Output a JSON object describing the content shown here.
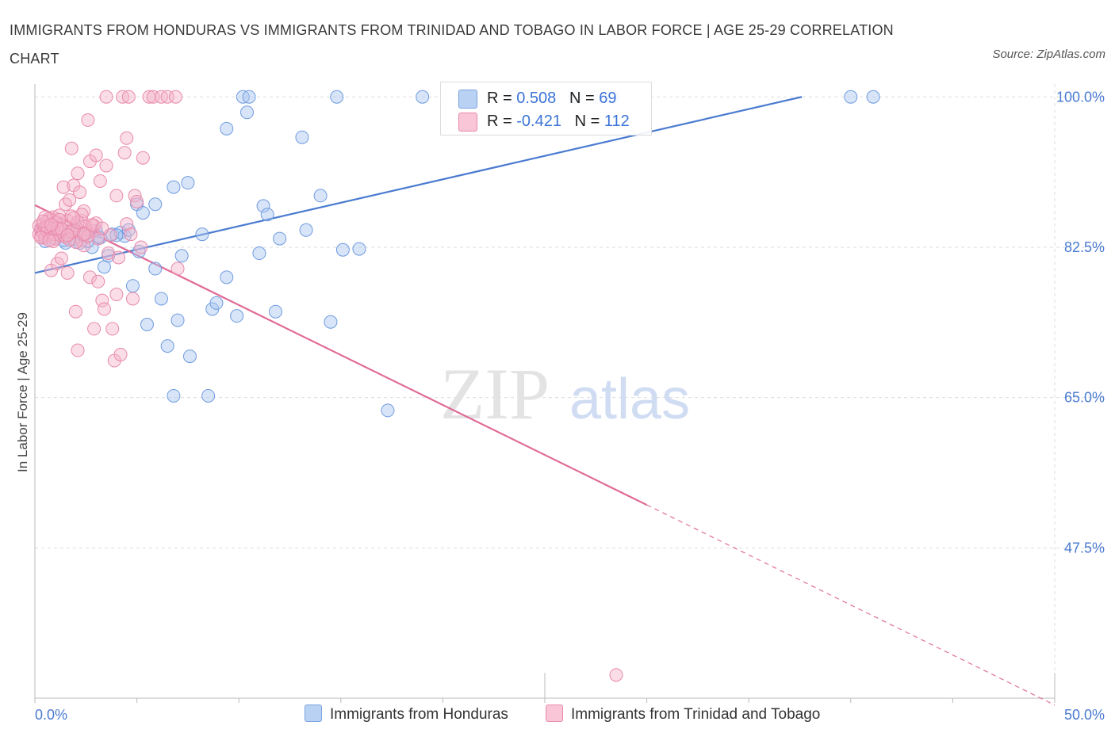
{
  "title": "IMMIGRANTS FROM HONDURAS VS IMMIGRANTS FROM TRINIDAD AND TOBAGO IN LABOR FORCE | AGE 25-29 CORRELATION CHART",
  "source": "Source: ZipAtlas.com",
  "watermark": {
    "zip": "ZIP",
    "atlas": "atlas"
  },
  "colors": {
    "blue": "#4a7bd0",
    "blue_fill": "#a8c6f0",
    "pink": "#e06a96",
    "pink_fill": "#f5b3c9",
    "grid": "#dddddd"
  },
  "legend": {
    "rows": [
      {
        "r_label": "R =",
        "r_value": "0.508",
        "n_label": "N =",
        "n_value": "69"
      },
      {
        "r_label": "R =",
        "r_value": "-0.421",
        "n_label": "N =",
        "n_value": "112"
      }
    ]
  },
  "bottom_legend": [
    "Immigrants from Honduras",
    "Immigrants from Trinidad and Tobago"
  ],
  "chart_data": {
    "type": "scatter",
    "title": "IMMIGRANTS FROM HONDURAS VS IMMIGRANTS FROM TRINIDAD AND TOBAGO IN LABOR FORCE | AGE 25-29 CORRELATION CHART",
    "xlabel": "",
    "ylabel": "In Labor Force | Age 25-29",
    "xlim": [
      0,
      50
    ],
    "ylim": [
      30,
      101.5
    ],
    "x_tick_labels": [
      "0.0%",
      "50.0%"
    ],
    "y_ticks": [
      47.5,
      65.0,
      82.5,
      100.0
    ],
    "y_tick_labels": [
      "47.5%",
      "65.0%",
      "82.5%",
      "100.0%"
    ],
    "grid": true,
    "legend_position": "top-center",
    "series": [
      {
        "name": "Immigrants from Honduras",
        "color": "#4a7bd0",
        "trend": {
          "x0": 0,
          "y0": 79.5,
          "x1": 37.6,
          "y1": 100.0
        },
        "points": [
          [
            0.3,
            84.5
          ],
          [
            0.5,
            83.2
          ],
          [
            0.8,
            84.0
          ],
          [
            1.0,
            83.5
          ],
          [
            1.2,
            84.3
          ],
          [
            1.5,
            83.0
          ],
          [
            1.7,
            84.2
          ],
          [
            1.9,
            83.4
          ],
          [
            2.2,
            83.0
          ],
          [
            2.4,
            83.8
          ],
          [
            2.8,
            82.5
          ],
          [
            3.0,
            84.4
          ],
          [
            3.2,
            83.6
          ],
          [
            3.4,
            80.2
          ],
          [
            3.6,
            81.5
          ],
          [
            3.8,
            84.0
          ],
          [
            4.2,
            84.2
          ],
          [
            4.4,
            83.8
          ],
          [
            4.6,
            84.5
          ],
          [
            4.8,
            78.0
          ],
          [
            5.0,
            87.5
          ],
          [
            5.1,
            82.0
          ],
          [
            5.3,
            86.5
          ],
          [
            5.5,
            73.5
          ],
          [
            5.9,
            87.5
          ],
          [
            5.9,
            80.0
          ],
          [
            6.2,
            76.5
          ],
          [
            6.5,
            71.0
          ],
          [
            6.8,
            89.5
          ],
          [
            6.8,
            65.2
          ],
          [
            7.0,
            74.0
          ],
          [
            7.2,
            81.5
          ],
          [
            7.5,
            90.0
          ],
          [
            7.6,
            69.8
          ],
          [
            8.2,
            84.0
          ],
          [
            8.5,
            65.2
          ],
          [
            8.7,
            75.3
          ],
          [
            8.9,
            76.0
          ],
          [
            9.4,
            96.3
          ],
          [
            9.4,
            79.0
          ],
          [
            9.9,
            74.5
          ],
          [
            10.2,
            100.0
          ],
          [
            10.4,
            98.2
          ],
          [
            10.5,
            100.0
          ],
          [
            11.0,
            81.8
          ],
          [
            11.2,
            87.3
          ],
          [
            11.4,
            86.3
          ],
          [
            11.8,
            75.0
          ],
          [
            12.0,
            83.5
          ],
          [
            13.1,
            95.3
          ],
          [
            13.3,
            84.5
          ],
          [
            14.0,
            88.5
          ],
          [
            14.5,
            73.8
          ],
          [
            14.8,
            100.0
          ],
          [
            15.1,
            82.2
          ],
          [
            15.9,
            82.3
          ],
          [
            17.3,
            63.5
          ],
          [
            19.0,
            100.0
          ],
          [
            23.5,
            100.0
          ],
          [
            26.5,
            100.0
          ],
          [
            27.5,
            100.0
          ],
          [
            28.3,
            100.0
          ],
          [
            40.0,
            100.0
          ],
          [
            41.1,
            100.0
          ],
          [
            2.0,
            84.8
          ],
          [
            2.6,
            83.2
          ],
          [
            3.1,
            83.7
          ],
          [
            1.4,
            83.3
          ],
          [
            4.0,
            83.9
          ]
        ]
      },
      {
        "name": "Immigrants from Trinidad and Tobago",
        "color": "#e06a96",
        "trend": {
          "x0": 0,
          "y0": 87.4,
          "x1": 30.0,
          "y1": 52.5
        },
        "trend_dashed": {
          "x0": 30.0,
          "y0": 52.5,
          "x1": 50.0,
          "y1": 29.2
        },
        "points": [
          [
            0.2,
            85.0
          ],
          [
            0.2,
            84.0
          ],
          [
            0.3,
            84.6
          ],
          [
            0.3,
            83.8
          ],
          [
            0.4,
            85.2
          ],
          [
            0.4,
            84.2
          ],
          [
            0.5,
            84.8
          ],
          [
            0.5,
            83.6
          ],
          [
            0.6,
            85.5
          ],
          [
            0.6,
            84.4
          ],
          [
            0.7,
            83.9
          ],
          [
            0.7,
            85.8
          ],
          [
            0.8,
            84.1
          ],
          [
            0.8,
            79.8
          ],
          [
            0.9,
            86.0
          ],
          [
            0.9,
            84.7
          ],
          [
            1.0,
            83.5
          ],
          [
            1.0,
            85.3
          ],
          [
            1.1,
            80.6
          ],
          [
            1.1,
            84.2
          ],
          [
            1.2,
            86.2
          ],
          [
            1.2,
            83.9
          ],
          [
            1.3,
            81.2
          ],
          [
            1.3,
            85.1
          ],
          [
            1.4,
            89.5
          ],
          [
            1.4,
            84.5
          ],
          [
            1.5,
            87.5
          ],
          [
            1.5,
            83.7
          ],
          [
            1.6,
            79.5
          ],
          [
            1.6,
            85.6
          ],
          [
            1.7,
            84.0
          ],
          [
            1.7,
            88.0
          ],
          [
            1.8,
            94.0
          ],
          [
            1.8,
            86.1
          ],
          [
            1.9,
            84.6
          ],
          [
            1.9,
            89.7
          ],
          [
            2.0,
            85.0
          ],
          [
            2.0,
            75.0
          ],
          [
            2.1,
            70.5
          ],
          [
            2.1,
            91.1
          ],
          [
            2.2,
            88.9
          ],
          [
            2.2,
            84.3
          ],
          [
            2.3,
            83.3
          ],
          [
            2.3,
            85.6
          ],
          [
            2.4,
            86.7
          ],
          [
            2.4,
            82.7
          ],
          [
            2.5,
            84.9
          ],
          [
            2.6,
            97.3
          ],
          [
            2.7,
            79.0
          ],
          [
            2.7,
            92.5
          ],
          [
            2.8,
            84.4
          ],
          [
            2.9,
            73.0
          ],
          [
            2.9,
            85.0
          ],
          [
            3.0,
            93.2
          ],
          [
            3.1,
            83.5
          ],
          [
            3.1,
            78.5
          ],
          [
            3.2,
            90.2
          ],
          [
            3.3,
            76.3
          ],
          [
            3.4,
            75.3
          ],
          [
            3.5,
            100.0
          ],
          [
            3.5,
            92.0
          ],
          [
            3.6,
            81.8
          ],
          [
            3.7,
            83.9
          ],
          [
            3.8,
            73.0
          ],
          [
            3.9,
            69.3
          ],
          [
            4.0,
            77.0
          ],
          [
            4.0,
            88.5
          ],
          [
            4.1,
            81.3
          ],
          [
            4.2,
            70.0
          ],
          [
            4.3,
            100.0
          ],
          [
            4.4,
            93.5
          ],
          [
            4.5,
            95.2
          ],
          [
            4.5,
            85.2
          ],
          [
            4.6,
            100.0
          ],
          [
            4.7,
            84.0
          ],
          [
            4.8,
            76.5
          ],
          [
            4.9,
            88.5
          ],
          [
            5.0,
            87.8
          ],
          [
            5.2,
            82.5
          ],
          [
            5.3,
            92.9
          ],
          [
            5.6,
            100.0
          ],
          [
            5.8,
            100.0
          ],
          [
            6.2,
            100.0
          ],
          [
            6.5,
            100.0
          ],
          [
            6.9,
            100.0
          ],
          [
            7.0,
            80.0
          ],
          [
            28.5,
            32.7
          ],
          [
            0.5,
            86.0
          ],
          [
            1.0,
            84.0
          ],
          [
            1.5,
            84.8
          ],
          [
            2.0,
            83.1
          ],
          [
            2.5,
            84.1
          ],
          [
            3.0,
            85.3
          ],
          [
            0.3,
            83.6
          ],
          [
            0.6,
            84.9
          ],
          [
            0.9,
            83.2
          ],
          [
            1.2,
            85.7
          ],
          [
            1.7,
            83.4
          ],
          [
            2.3,
            86.3
          ],
          [
            2.8,
            85.1
          ],
          [
            1.1,
            84.7
          ],
          [
            0.4,
            85.5
          ],
          [
            0.7,
            83.3
          ],
          [
            1.3,
            84.6
          ],
          [
            1.8,
            84.3
          ],
          [
            2.1,
            85.4
          ],
          [
            2.6,
            83.8
          ],
          [
            3.3,
            84.7
          ],
          [
            0.8,
            85.1
          ],
          [
            1.6,
            83.9
          ],
          [
            1.9,
            85.9
          ],
          [
            2.4,
            84.0
          ]
        ]
      }
    ]
  }
}
